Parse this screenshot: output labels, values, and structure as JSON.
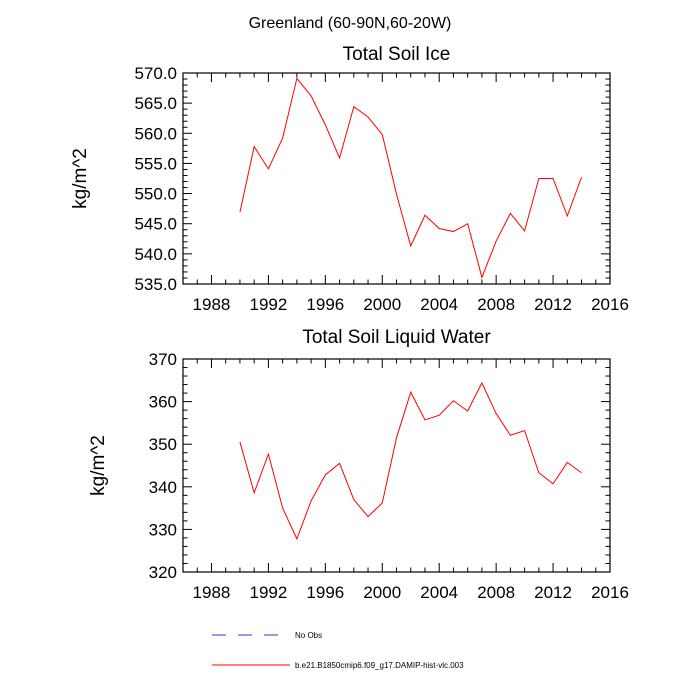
{
  "figure_title": "Greenland (60-90N,60-20W)",
  "chart_data": [
    {
      "type": "line",
      "title": "Total Soil Ice",
      "xlabel": "",
      "ylabel": "kg/m^2",
      "xlim": [
        1986,
        2016
      ],
      "ylim": [
        535,
        570
      ],
      "x_ticks": [
        1988,
        1992,
        1996,
        2000,
        2004,
        2008,
        2012,
        2016
      ],
      "x_tick_labels": [
        "1988",
        "1992",
        "1996",
        "2000",
        "2004",
        "2008",
        "2012",
        "2016"
      ],
      "y_ticks": [
        535,
        540,
        545,
        550,
        555,
        560,
        565,
        570
      ],
      "y_tick_labels": [
        "535.0",
        "540.0",
        "545.0",
        "550.0",
        "555.0",
        "560.0",
        "565.0",
        "570.0"
      ],
      "series": [
        {
          "name": "b.e21.B1850cmip6.f09_g17.DAMIP-hist-vlc.003",
          "color": "#ff0000",
          "x": [
            1990,
            1991,
            1992,
            1993,
            1994,
            1995,
            1996,
            1997,
            1998,
            1999,
            2000,
            2001,
            2002,
            2003,
            2004,
            2005,
            2006,
            2007,
            2008,
            2009,
            2010,
            2011,
            2012,
            2013,
            2014
          ],
          "values": [
            546.9,
            557.8,
            554.1,
            559.2,
            569.1,
            566.2,
            561.4,
            555.9,
            564.4,
            562.7,
            559.8,
            549.9,
            541.3,
            546.4,
            544.2,
            543.7,
            545.0,
            536.1,
            542.1,
            546.7,
            543.8,
            552.5,
            552.5,
            546.3,
            552.7
          ]
        }
      ]
    },
    {
      "type": "line",
      "title": "Total Soil Liquid Water",
      "xlabel": "",
      "ylabel": "kg/m^2",
      "xlim": [
        1986,
        2016
      ],
      "ylim": [
        320,
        370
      ],
      "x_ticks": [
        1988,
        1992,
        1996,
        2000,
        2004,
        2008,
        2012,
        2016
      ],
      "x_tick_labels": [
        "1988",
        "1992",
        "1996",
        "2000",
        "2004",
        "2008",
        "2012",
        "2016"
      ],
      "y_ticks": [
        320,
        330,
        340,
        350,
        360,
        370
      ],
      "y_tick_labels": [
        "320",
        "330",
        "340",
        "350",
        "360",
        "370"
      ],
      "series": [
        {
          "name": "b.e21.B1850cmip6.f09_g17.DAMIP-hist-vlc.003",
          "color": "#ff0000",
          "x": [
            1990,
            1991,
            1992,
            1993,
            1994,
            1995,
            1996,
            1997,
            1998,
            1999,
            2000,
            2001,
            2002,
            2003,
            2004,
            2005,
            2006,
            2007,
            2008,
            2009,
            2010,
            2011,
            2012,
            2013,
            2014
          ],
          "values": [
            350.5,
            338.6,
            347.7,
            335.0,
            327.8,
            336.7,
            342.8,
            345.5,
            337.0,
            333.0,
            336.2,
            351.5,
            362.2,
            355.7,
            356.8,
            360.2,
            357.8,
            364.4,
            357.2,
            352.1,
            353.2,
            343.3,
            340.7,
            345.7,
            343.3
          ]
        }
      ]
    }
  ],
  "legend": [
    {
      "label": "No Obs",
      "color": "#3333cc",
      "dash": "dashed"
    },
    {
      "label": "b.e21.B1850cmip6.f09_g17.DAMIP-hist-vlc.003",
      "color": "#ff0000",
      "dash": "solid"
    }
  ]
}
